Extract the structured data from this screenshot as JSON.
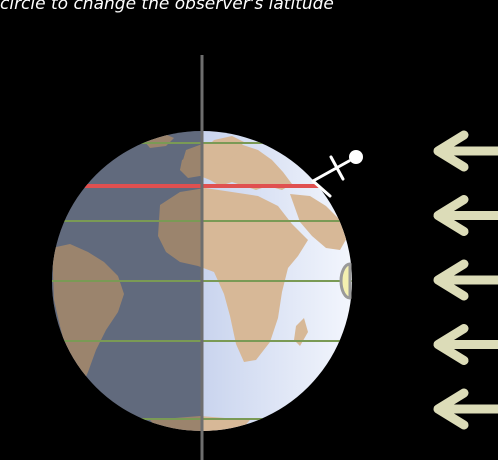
{
  "instruction": "circle to change the observer's latitude",
  "colors": {
    "background": "#000000",
    "ocean_lit": "#dfe6f7",
    "ocean_dark": "#8793ad",
    "land_lit": "#d7b897",
    "land_dark": "#a88e76",
    "latitude_line": "#7a9a55",
    "observer_latitude": "#e05050",
    "axis": "#6e6e6e",
    "sun_ray_arrow": "#dcdcb8",
    "observer": "#ffffff",
    "latitude_handle": "#f4f0b0"
  },
  "sun_rays": {
    "count": 5
  },
  "observer_latitude_deg": 35
}
